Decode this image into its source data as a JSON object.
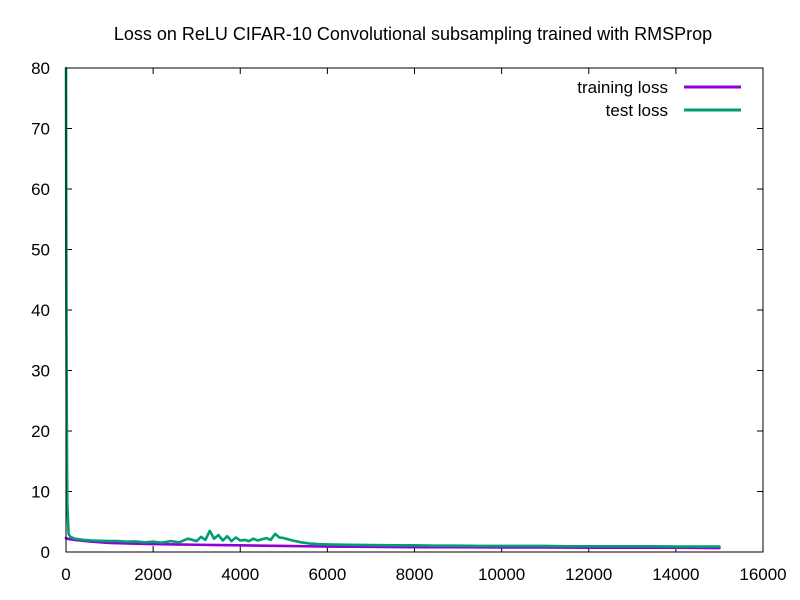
{
  "chart_data": {
    "type": "line",
    "title": "Loss on ReLU CIFAR-10 Convolutional subsampling trained with RMSProp",
    "xlabel": "",
    "ylabel": "",
    "xlim": [
      0,
      16000
    ],
    "ylim": [
      0,
      80
    ],
    "x_ticks": [
      0,
      2000,
      4000,
      6000,
      8000,
      10000,
      12000,
      14000,
      16000
    ],
    "y_ticks": [
      0,
      10,
      20,
      30,
      40,
      50,
      60,
      70,
      80
    ],
    "x_tick_labels": [
      "0",
      "2000",
      "4000",
      "6000",
      "8000",
      "10000",
      "12000",
      "14000",
      "16000"
    ],
    "y_tick_labels": [
      "0",
      "10",
      "20",
      "30",
      "40",
      "50",
      "60",
      "70",
      "80"
    ],
    "grid": false,
    "legend_position": "top-right",
    "series": [
      {
        "name": "training loss",
        "color": "#9400d3",
        "x": [
          0,
          5,
          10,
          20,
          30,
          60,
          100,
          200,
          400,
          600,
          800,
          1000,
          1500,
          2000,
          2500,
          3000,
          3500,
          4000,
          4500,
          5000,
          5500,
          6000,
          7000,
          8000,
          9000,
          10000,
          11000,
          12000,
          13000,
          14000,
          15000
        ],
        "y": [
          2.3,
          2.3,
          2.3,
          2.25,
          2.2,
          2.15,
          2.1,
          2.0,
          1.85,
          1.7,
          1.6,
          1.5,
          1.4,
          1.3,
          1.25,
          1.2,
          1.15,
          1.1,
          1.05,
          1.0,
          0.95,
          0.9,
          0.85,
          0.8,
          0.8,
          0.75,
          0.75,
          0.7,
          0.7,
          0.7,
          0.65
        ]
      },
      {
        "name": "test loss",
        "color": "#009e73",
        "x": [
          0,
          5,
          10,
          20,
          30,
          60,
          100,
          200,
          400,
          600,
          800,
          1000,
          1200,
          1400,
          1600,
          1800,
          2000,
          2200,
          2400,
          2600,
          2800,
          3000,
          3100,
          3200,
          3300,
          3400,
          3500,
          3600,
          3700,
          3800,
          3900,
          4000,
          4100,
          4200,
          4300,
          4400,
          4500,
          4600,
          4700,
          4800,
          4900,
          5000,
          5200,
          5400,
          5600,
          5800,
          6000,
          6500,
          7000,
          7500,
          8000,
          8500,
          9000,
          9500,
          10000,
          10500,
          11000,
          11500,
          12000,
          12500,
          13000,
          13500,
          14000,
          14500,
          15000
        ],
        "y": [
          80,
          60,
          41,
          20,
          8,
          3,
          2.5,
          2.2,
          2.0,
          1.9,
          1.85,
          1.8,
          1.8,
          1.7,
          1.75,
          1.6,
          1.7,
          1.55,
          1.8,
          1.6,
          2.2,
          1.8,
          2.5,
          2.0,
          3.5,
          2.2,
          2.8,
          1.9,
          2.6,
          1.8,
          2.4,
          1.9,
          2.0,
          1.8,
          2.2,
          1.9,
          2.1,
          2.3,
          2.0,
          3.0,
          2.4,
          2.3,
          1.9,
          1.6,
          1.4,
          1.3,
          1.25,
          1.2,
          1.15,
          1.1,
          1.1,
          1.05,
          1.05,
          1.0,
          1.0,
          1.0,
          1.0,
          0.95,
          0.95,
          0.95,
          0.95,
          0.95,
          0.9,
          0.9,
          0.9
        ]
      }
    ]
  }
}
